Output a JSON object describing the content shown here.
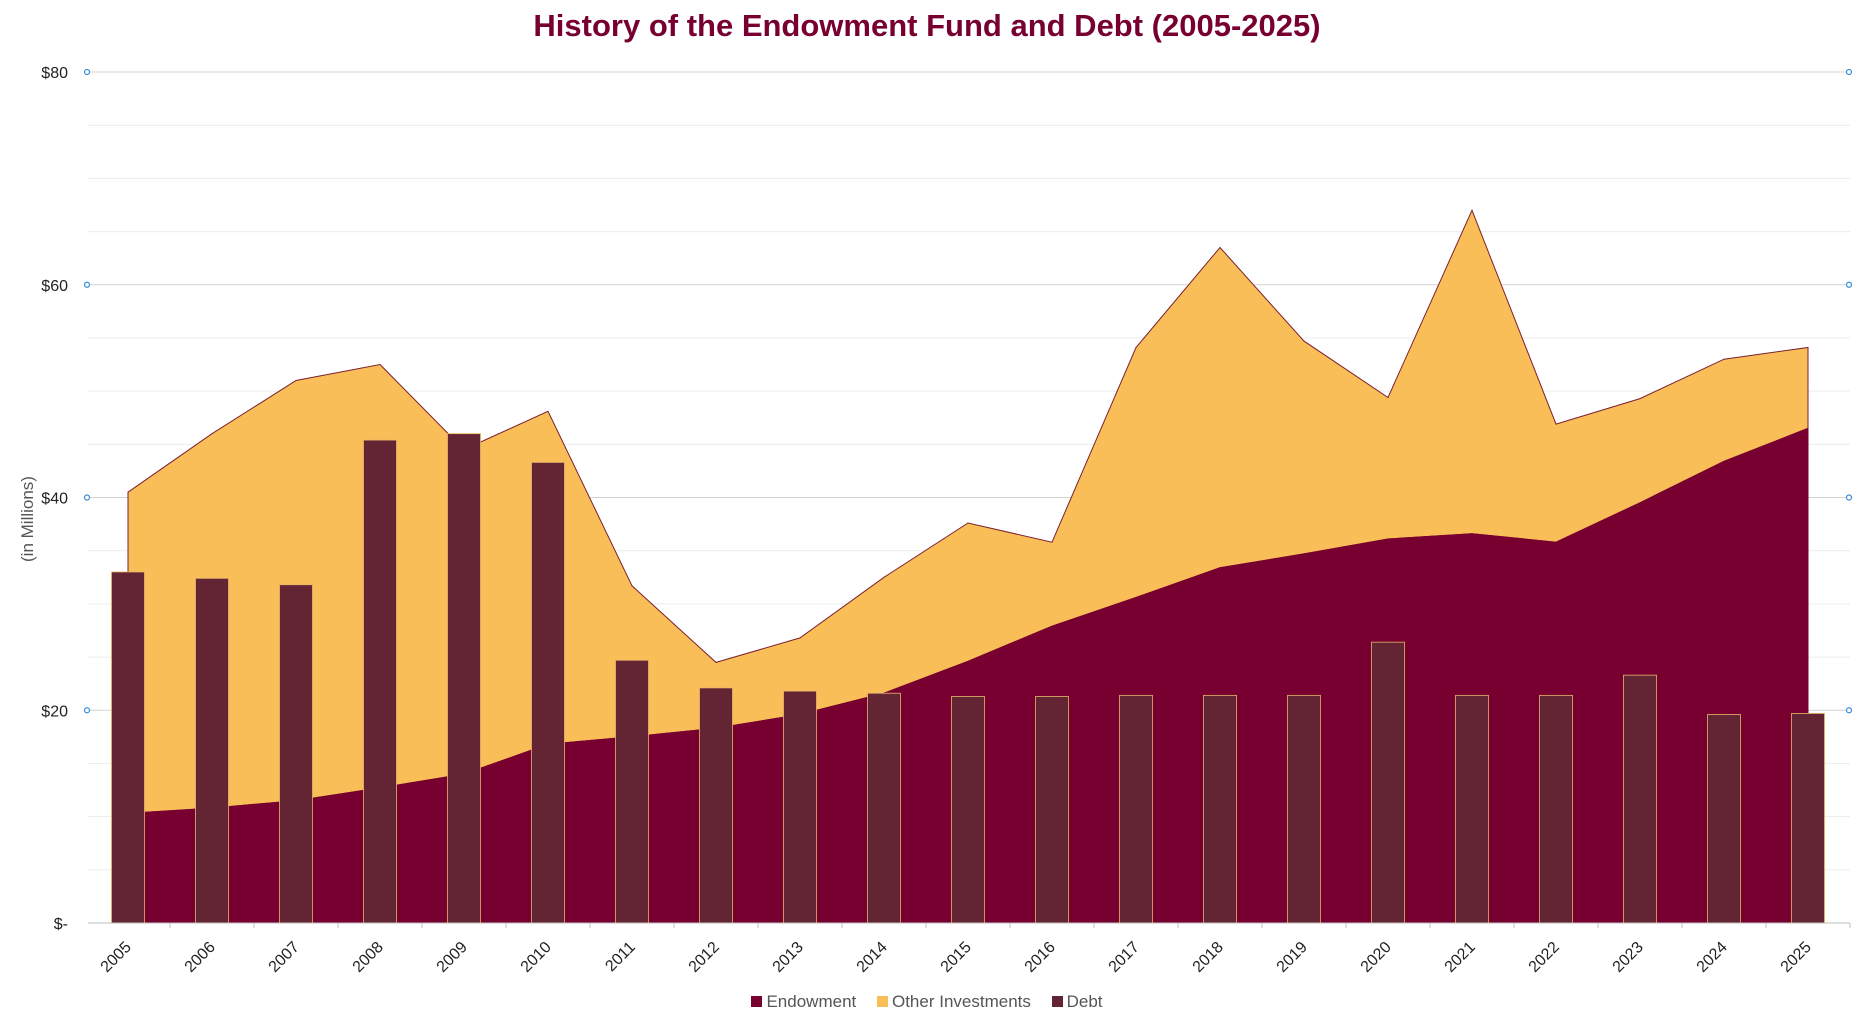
{
  "chart_data": {
    "type": "area",
    "title": "History of the Endowment Fund and Debt (2005-2025)",
    "xlabel": "",
    "ylabel": "(in Millions)",
    "ylim": [
      0,
      80
    ],
    "y_ticks": [
      {
        "value": 0,
        "label": "$-"
      },
      {
        "value": 20,
        "label": "$20"
      },
      {
        "value": 40,
        "label": "$40"
      },
      {
        "value": 60,
        "label": "$60"
      },
      {
        "value": 80,
        "label": "$80"
      }
    ],
    "categories": [
      "2005",
      "2006",
      "2007",
      "2008",
      "2009",
      "2010",
      "2011",
      "2012",
      "2013",
      "2014",
      "2015",
      "2016",
      "2017",
      "2018",
      "2019",
      "2020",
      "2021",
      "2022",
      "2023",
      "2024",
      "2025"
    ],
    "series": [
      {
        "name": "Endowment",
        "type": "stacked-area",
        "color": "#780030",
        "values": [
          10.3,
          10.8,
          11.5,
          12.7,
          14.0,
          16.8,
          17.5,
          18.3,
          19.6,
          21.6,
          24.6,
          27.9,
          30.6,
          33.4,
          34.7,
          36.1,
          36.6,
          35.8,
          39.5,
          43.4,
          46.5
        ]
      },
      {
        "name": "Other Investments",
        "type": "stacked-area",
        "color": "#F9BE58",
        "values": [
          30.2,
          35.2,
          39.5,
          39.8,
          30.5,
          31.3,
          14.2,
          6.2,
          7.2,
          10.9,
          13.0,
          7.9,
          23.5,
          30.1,
          20.0,
          13.3,
          30.4,
          11.1,
          9.8,
          9.6,
          7.6
        ]
      },
      {
        "name": "Debt",
        "type": "bar",
        "color": "#632433",
        "values": [
          33.0,
          32.4,
          31.8,
          45.4,
          46.0,
          43.3,
          24.7,
          22.1,
          21.8,
          21.6,
          21.3,
          21.3,
          21.4,
          21.4,
          21.4,
          26.4,
          21.4,
          21.4,
          23.3,
          19.6,
          19.7
        ]
      }
    ],
    "legend": [
      {
        "label": "Endowment",
        "color": "#780030"
      },
      {
        "label": "Other Investments",
        "color": "#F9BE58"
      },
      {
        "label": "Debt",
        "color": "#632433"
      }
    ],
    "grid": true,
    "legend_position": "bottom"
  }
}
